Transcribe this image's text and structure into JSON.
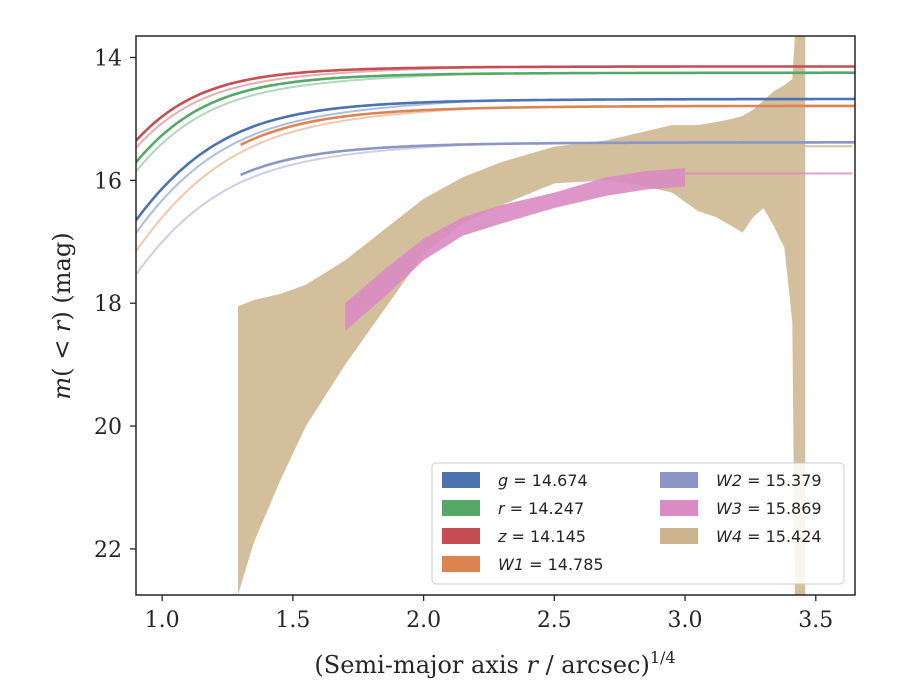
{
  "chart_data": {
    "type": "line",
    "xlabel_main": "(Semi-major axis ",
    "xlabel_var": "r",
    "xlabel_tail": " / arcsec)",
    "xlabel_exp": "1/4",
    "ylabel_main": "m",
    "ylabel_paren_open": "(",
    "ylabel_lt": " < ",
    "ylabel_var": "r",
    "ylabel_paren_close": ")",
    "ylabel_unit": " (mag)",
    "xlim": [
      0.9,
      3.65
    ],
    "ylim": [
      22.75,
      13.65
    ],
    "y_inverted": true,
    "xticks": [
      1.0,
      1.5,
      2.0,
      2.5,
      3.0,
      3.5
    ],
    "xtick_labels": [
      "1.0",
      "1.5",
      "2.0",
      "2.5",
      "3.0",
      "3.5"
    ],
    "yticks": [
      14,
      16,
      18,
      20,
      22
    ],
    "ytick_labels": [
      "14",
      "16",
      "18",
      "20",
      "22"
    ],
    "grid": false,
    "legend_placement": "lower-right",
    "series": [
      {
        "band": "g",
        "value": "14.674",
        "color": "#4c72b0",
        "kind": "curve",
        "m_tot": 14.674,
        "x_extent": [
          0.9,
          3.65
        ],
        "faint_max_x": 3.63,
        "solid_from": 0.9,
        "kappa": 1.2,
        "p": 2.6,
        "offset_faint": 0.35
      },
      {
        "band": "r",
        "value": "14.247",
        "color": "#55a868",
        "kind": "curve",
        "m_tot": 14.247,
        "x_extent": [
          0.9,
          3.65
        ],
        "faint_max_x": 3.63,
        "solid_from": 0.9,
        "kappa": 1.08,
        "p": 2.6,
        "offset_faint": 0.25
      },
      {
        "band": "z",
        "value": "14.145",
        "color": "#c44e52",
        "kind": "curve",
        "m_tot": 14.145,
        "x_extent": [
          0.9,
          3.65
        ],
        "faint_max_x": 3.63,
        "solid_from": 0.9,
        "kappa": 1.02,
        "p": 2.6,
        "offset_faint": 0.2
      },
      {
        "band": "W1",
        "value": "14.785",
        "color": "#dd8452",
        "kind": "curve",
        "m_tot": 14.785,
        "x_extent": [
          0.9,
          3.65
        ],
        "faint_max_x": 3.63,
        "solid_from": 1.3,
        "kappa": 1.25,
        "p": 2.6,
        "offset_faint": 0.3
      },
      {
        "band": "W2",
        "value": "15.379",
        "color": "#8c96c6",
        "kind": "curve",
        "m_tot": 15.379,
        "x_extent": [
          0.9,
          3.65
        ],
        "faint_max_x": 3.63,
        "solid_from": 1.3,
        "kappa": 1.2,
        "p": 2.6,
        "offset_faint": 0.3
      },
      {
        "band": "W3",
        "value": "15.869",
        "color": "#da8bc3",
        "kind": "band",
        "m_tot": 15.869,
        "x_extent": [
          1.7,
          3.0
        ],
        "band_points": [
          [
            1.7,
            18.45,
            18.0
          ],
          [
            1.85,
            17.9,
            17.45
          ],
          [
            2.0,
            17.3,
            16.95
          ],
          [
            2.15,
            16.9,
            16.6
          ],
          [
            2.3,
            16.7,
            16.4
          ],
          [
            2.5,
            16.45,
            16.2
          ],
          [
            2.7,
            16.25,
            15.95
          ],
          [
            2.85,
            16.15,
            15.85
          ],
          [
            3.0,
            16.1,
            15.8
          ]
        ]
      },
      {
        "band": "W4",
        "value": "15.424",
        "color": "#ccb48c",
        "kind": "band",
        "m_tot": 15.424,
        "x_extent": [
          1.29,
          3.46
        ],
        "band_points": [
          [
            1.29,
            22.75,
            18.05
          ],
          [
            1.35,
            21.9,
            17.95
          ],
          [
            1.45,
            20.9,
            17.85
          ],
          [
            1.55,
            20.0,
            17.7
          ],
          [
            1.7,
            19.0,
            17.3
          ],
          [
            1.85,
            18.1,
            16.8
          ],
          [
            2.0,
            17.2,
            16.3
          ],
          [
            2.15,
            16.7,
            15.95
          ],
          [
            2.3,
            16.4,
            15.7
          ],
          [
            2.5,
            16.05,
            15.45
          ],
          [
            2.7,
            16.0,
            15.35
          ],
          [
            2.85,
            16.1,
            15.2
          ],
          [
            2.95,
            16.2,
            15.1
          ],
          [
            3.05,
            16.5,
            15.1
          ],
          [
            3.12,
            16.6,
            15.05
          ],
          [
            3.18,
            16.75,
            15.0
          ],
          [
            3.22,
            16.85,
            14.95
          ],
          [
            3.26,
            16.6,
            14.85
          ],
          [
            3.3,
            16.45,
            14.7
          ],
          [
            3.34,
            16.75,
            14.55
          ],
          [
            3.38,
            17.1,
            14.45
          ],
          [
            3.41,
            18.3,
            14.35
          ],
          [
            3.42,
            22.75,
            13.65
          ],
          [
            3.46,
            22.75,
            13.65
          ]
        ]
      }
    ]
  }
}
